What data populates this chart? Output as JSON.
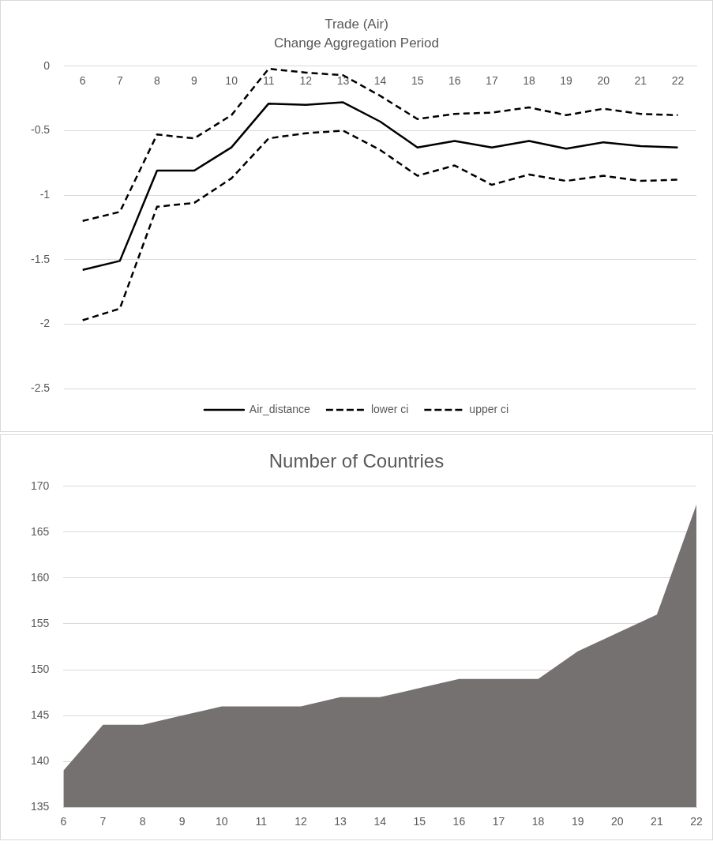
{
  "chart_data": [
    {
      "type": "line",
      "title": "Trade (Air)",
      "subtitle": "Change Aggregation Period",
      "categories": [
        "6",
        "7",
        "8",
        "9",
        "10",
        "11",
        "12",
        "13",
        "14",
        "15",
        "16",
        "17",
        "18",
        "19",
        "20",
        "21",
        "22"
      ],
      "series": [
        {
          "name": "Air_distance",
          "color": "#000000",
          "line_style": "solid",
          "values": [
            -1.58,
            -1.51,
            -0.81,
            -0.81,
            -0.63,
            -0.29,
            -0.3,
            -0.28,
            -0.43,
            -0.63,
            -0.58,
            -0.63,
            -0.58,
            -0.64,
            -0.59,
            -0.62,
            -0.63
          ]
        },
        {
          "name": "lower ci",
          "color": "#000000",
          "line_style": "dashed",
          "values": [
            -1.97,
            -1.88,
            -1.09,
            -1.06,
            -0.87,
            -0.56,
            -0.52,
            -0.5,
            -0.65,
            -0.85,
            -0.77,
            -0.92,
            -0.84,
            -0.89,
            -0.85,
            -0.89,
            -0.88
          ]
        },
        {
          "name": "upper ci",
          "color": "#000000",
          "line_style": "dashed",
          "values": [
            -1.2,
            -1.13,
            -0.53,
            -0.56,
            -0.38,
            -0.02,
            -0.05,
            -0.07,
            -0.23,
            -0.41,
            -0.37,
            -0.36,
            -0.32,
            -0.38,
            -0.33,
            -0.37,
            -0.38
          ]
        }
      ],
      "ylim": [
        -2.5,
        0
      ],
      "yticks": [
        0,
        -0.5,
        -1,
        -1.5,
        -2,
        -2.5
      ],
      "grid": "y",
      "legend": "bottom",
      "marker": "none"
    },
    {
      "type": "area",
      "title": "Number of Countries",
      "categories": [
        "6",
        "7",
        "8",
        "9",
        "10",
        "11",
        "12",
        "13",
        "14",
        "15",
        "16",
        "17",
        "18",
        "19",
        "20",
        "21",
        "22"
      ],
      "series": [
        {
          "color": "#767171",
          "values": [
            139,
            144,
            144,
            145,
            146,
            146,
            146,
            147,
            147,
            148,
            149,
            149,
            149,
            152,
            154,
            156,
            168
          ]
        }
      ],
      "ylim": [
        135,
        170
      ],
      "yticks": [
        135,
        140,
        145,
        150,
        155,
        160,
        165,
        170
      ],
      "grid": "y"
    }
  ]
}
